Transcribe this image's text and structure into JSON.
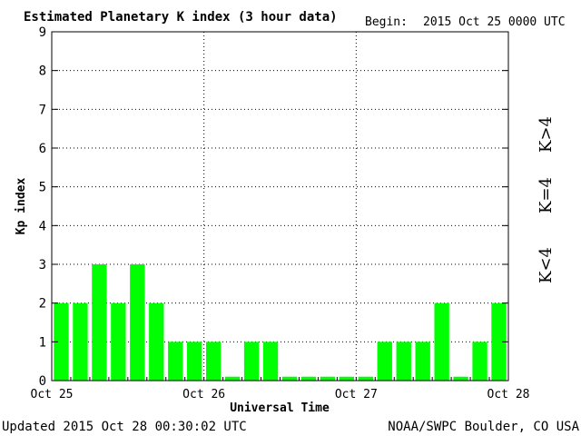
{
  "chart_data": {
    "type": "bar",
    "title": "Estimated Planetary K index (3 hour data)",
    "begin_label": "Begin:",
    "begin_value": "2015 Oct 25 0000 UTC",
    "xlabel": "Universal Time",
    "ylabel": "Kp index",
    "ylim": [
      0,
      9
    ],
    "yticks": [
      "0",
      "1",
      "2",
      "3",
      "4",
      "5",
      "6",
      "7",
      "8",
      "9"
    ],
    "xticks": [
      "Oct 25",
      "Oct 26",
      "Oct 27",
      "Oct 28"
    ],
    "grid": true,
    "bar_color": "#00ff00",
    "values": [
      2,
      2,
      3,
      2,
      3,
      2,
      1,
      1,
      1,
      0,
      1,
      1,
      0,
      0,
      0,
      0,
      0,
      1,
      1,
      1,
      2,
      0,
      1,
      2
    ],
    "legend": [
      {
        "label": "K<4",
        "color": "#33ee33"
      },
      {
        "label": "K=4",
        "color": "#ffcc00"
      },
      {
        "label": "K>4",
        "color": "#ee2200"
      }
    ]
  },
  "footer": {
    "updated": "Updated 2015 Oct 28 00:30:02 UTC",
    "source": "NOAA/SWPC Boulder, CO USA"
  }
}
